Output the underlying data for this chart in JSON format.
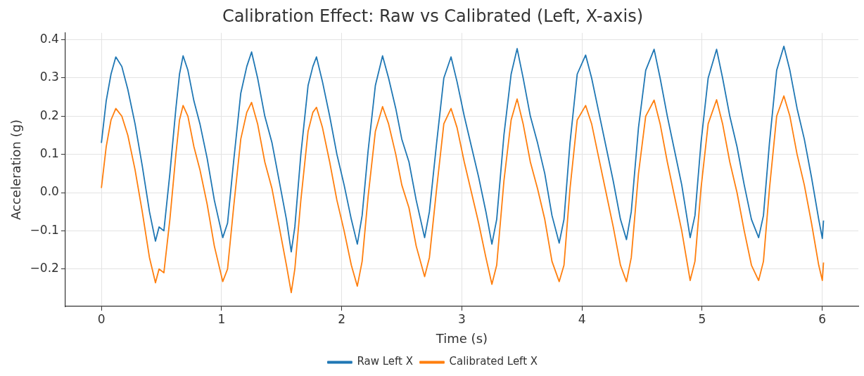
{
  "chart_data": {
    "type": "line",
    "title": "Calibration Effect: Raw vs Calibrated (Left, X-axis)",
    "xlabel": "Time (s)",
    "ylabel": "Acceleration (g)",
    "x": [
      0,
      0.04,
      0.08,
      0.12,
      0.17,
      0.22,
      0.28,
      0.34,
      0.4,
      0.45,
      0.48,
      0.52,
      0.57,
      0.62,
      0.65,
      0.68,
      0.72,
      0.77,
      0.82,
      0.88,
      0.94,
      1.01,
      1.05,
      1.1,
      1.16,
      1.21,
      1.25,
      1.3,
      1.36,
      1.42,
      1.48,
      1.54,
      1.58,
      1.61,
      1.66,
      1.72,
      1.76,
      1.79,
      1.84,
      1.9,
      1.96,
      2.02,
      2.08,
      2.13,
      2.17,
      2.22,
      2.28,
      2.34,
      2.39,
      2.45,
      2.5,
      2.56,
      2.62,
      2.69,
      2.73,
      2.79,
      2.85,
      2.91,
      2.96,
      3.02,
      3.08,
      3.14,
      3.2,
      3.25,
      3.29,
      3.35,
      3.41,
      3.46,
      3.51,
      3.57,
      3.63,
      3.69,
      3.75,
      3.81,
      3.85,
      3.9,
      3.96,
      4.03,
      4.08,
      4.14,
      4.2,
      4.26,
      4.32,
      4.37,
      4.41,
      4.47,
      4.53,
      4.6,
      4.65,
      4.71,
      4.77,
      4.83,
      4.9,
      4.94,
      4.99,
      5.05,
      5.12,
      5.17,
      5.23,
      5.29,
      5.35,
      5.41,
      5.47,
      5.51,
      5.56,
      5.62,
      5.68,
      5.73,
      5.79,
      5.85,
      5.91,
      5.97,
      6.0,
      6.01
    ],
    "series": [
      {
        "name": "Raw Left X",
        "color": "#1f77b4",
        "values": [
          0.13,
          0.24,
          0.31,
          0.355,
          0.33,
          0.27,
          0.18,
          0.07,
          -0.05,
          -0.127,
          -0.09,
          -0.1,
          0.05,
          0.22,
          0.31,
          0.358,
          0.32,
          0.24,
          0.18,
          0.09,
          -0.02,
          -0.118,
          -0.08,
          0.08,
          0.26,
          0.33,
          0.368,
          0.3,
          0.2,
          0.13,
          0.03,
          -0.07,
          -0.155,
          -0.09,
          0.1,
          0.28,
          0.33,
          0.355,
          0.29,
          0.2,
          0.1,
          0.02,
          -0.07,
          -0.135,
          -0.06,
          0.11,
          0.28,
          0.358,
          0.3,
          0.22,
          0.14,
          0.08,
          -0.02,
          -0.118,
          -0.05,
          0.13,
          0.3,
          0.355,
          0.29,
          0.2,
          0.12,
          0.04,
          -0.05,
          -0.135,
          -0.07,
          0.15,
          0.31,
          0.377,
          0.3,
          0.2,
          0.13,
          0.05,
          -0.06,
          -0.132,
          -0.07,
          0.13,
          0.31,
          0.36,
          0.3,
          0.21,
          0.12,
          0.03,
          -0.07,
          -0.123,
          -0.05,
          0.17,
          0.32,
          0.375,
          0.3,
          0.2,
          0.11,
          0.02,
          -0.118,
          -0.06,
          0.13,
          0.3,
          0.375,
          0.3,
          0.2,
          0.12,
          0.02,
          -0.07,
          -0.118,
          -0.06,
          0.13,
          0.32,
          0.383,
          0.32,
          0.22,
          0.14,
          0.04,
          -0.07,
          -0.12,
          -0.073
        ]
      },
      {
        "name": "Calibrated Left X",
        "color": "#ff7f0e",
        "values": [
          0.012,
          0.12,
          0.19,
          0.22,
          0.2,
          0.15,
          0.06,
          -0.05,
          -0.17,
          -0.236,
          -0.2,
          -0.21,
          -0.07,
          0.1,
          0.19,
          0.228,
          0.2,
          0.12,
          0.06,
          -0.03,
          -0.14,
          -0.233,
          -0.2,
          -0.04,
          0.14,
          0.21,
          0.236,
          0.18,
          0.08,
          0.01,
          -0.09,
          -0.19,
          -0.262,
          -0.2,
          -0.02,
          0.16,
          0.21,
          0.223,
          0.17,
          0.08,
          -0.02,
          -0.1,
          -0.19,
          -0.245,
          -0.18,
          -0.01,
          0.16,
          0.225,
          0.18,
          0.1,
          0.02,
          -0.04,
          -0.14,
          -0.22,
          -0.17,
          0.01,
          0.18,
          0.22,
          0.17,
          0.08,
          0,
          -0.08,
          -0.17,
          -0.24,
          -0.19,
          0.03,
          0.19,
          0.245,
          0.18,
          0.08,
          0.01,
          -0.07,
          -0.18,
          -0.233,
          -0.19,
          0.01,
          0.19,
          0.228,
          0.18,
          0.09,
          0,
          -0.09,
          -0.19,
          -0.233,
          -0.17,
          0.05,
          0.2,
          0.242,
          0.18,
          0.08,
          -0.01,
          -0.1,
          -0.23,
          -0.18,
          0.01,
          0.18,
          0.243,
          0.18,
          0.08,
          0,
          -0.1,
          -0.19,
          -0.23,
          -0.18,
          0.01,
          0.2,
          0.253,
          0.2,
          0.1,
          0.02,
          -0.08,
          -0.19,
          -0.23,
          -0.183
        ]
      }
    ],
    "xlim": [
      -0.3,
      6.3
    ],
    "xticks": [
      0,
      1,
      2,
      3,
      4,
      5,
      6
    ],
    "ylim": [
      -0.298,
      0.418
    ],
    "yticks": [
      {
        "value": -0.2,
        "label": "−0.2"
      },
      {
        "value": -0.1,
        "label": "−0.1"
      },
      {
        "value": 0,
        "label": "0.0"
      },
      0.1,
      0.2,
      0.3,
      0.4
    ],
    "grid": true,
    "legend": "bottom",
    "marker": "none",
    "line_style": "solid"
  }
}
